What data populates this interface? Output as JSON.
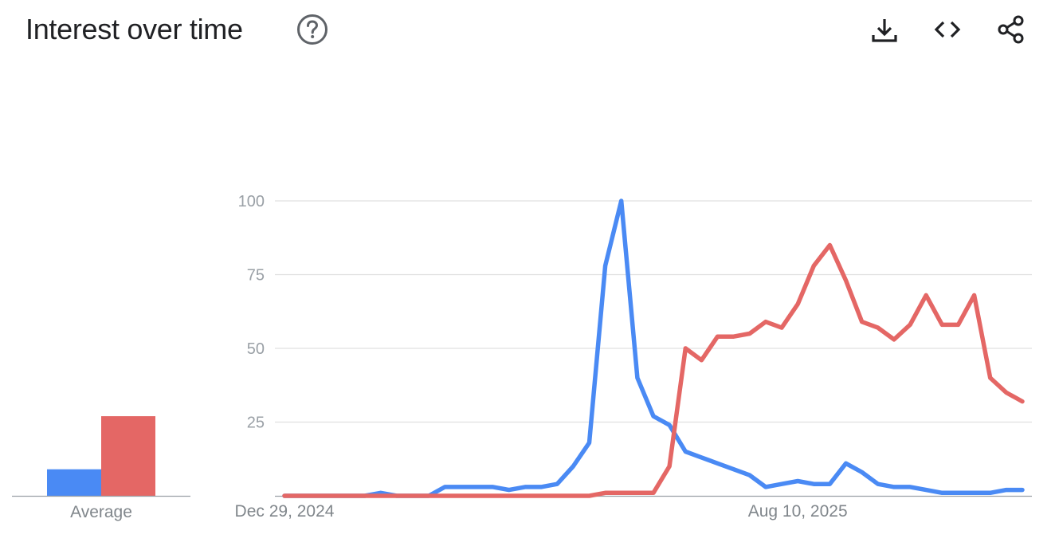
{
  "header": {
    "title": "Interest over time",
    "help_icon": "help-circle-icon",
    "actions": [
      {
        "name": "download-icon"
      },
      {
        "name": "embed-code-icon"
      },
      {
        "name": "share-icon"
      }
    ]
  },
  "colors": {
    "series_a": "#4a8af4",
    "series_b": "#e46765",
    "grid": "#e0e0e0",
    "baseline": "#9aa0a6"
  },
  "chart_data": [
    {
      "type": "bar",
      "title": "",
      "categories": [
        "Average"
      ],
      "series": [
        {
          "values": [
            9
          ]
        },
        {
          "values": [
            27
          ]
        }
      ],
      "ylim": [
        0,
        100
      ]
    },
    {
      "type": "line",
      "title": "",
      "xlabel": "",
      "ylabel": "",
      "ylim": [
        0,
        100
      ],
      "yticks": [
        25,
        50,
        75,
        100
      ],
      "grid": true,
      "x_tick_labels": [
        "Dec 29, 2024",
        "Aug 10, 2025"
      ],
      "x_tick_indices": [
        0,
        32
      ],
      "x_count": 47,
      "series": [
        {
          "values": [
            0,
            0,
            0,
            0,
            0,
            0,
            1,
            0,
            0,
            0,
            3,
            3,
            3,
            3,
            2,
            3,
            3,
            4,
            10,
            18,
            78,
            100,
            40,
            27,
            24,
            15,
            13,
            11,
            9,
            7,
            3,
            4,
            5,
            4,
            4,
            11,
            8,
            4,
            3,
            3,
            2,
            1,
            1,
            1,
            1,
            2,
            2
          ]
        },
        {
          "values": [
            0,
            0,
            0,
            0,
            0,
            0,
            0,
            0,
            0,
            0,
            0,
            0,
            0,
            0,
            0,
            0,
            0,
            0,
            0,
            0,
            1,
            1,
            1,
            1,
            10,
            50,
            46,
            54,
            54,
            55,
            59,
            57,
            65,
            78,
            85,
            73,
            59,
            57,
            53,
            58,
            68,
            58,
            58,
            68,
            40,
            35,
            32
          ]
        }
      ]
    }
  ]
}
